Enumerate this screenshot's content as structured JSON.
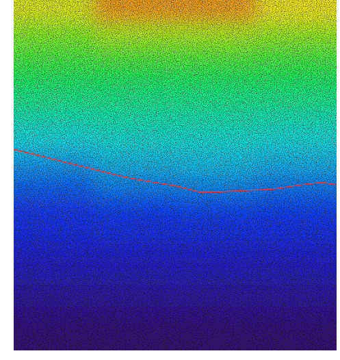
{
  "chart_data": {
    "type": "heatmap",
    "xlim": [
      0,
      1
    ],
    "ylim": [
      0,
      1
    ],
    "zlim": [
      0,
      1
    ],
    "tick_labels": false,
    "cells": [
      [
        0.9,
        0.97,
        0.97,
        0.92
      ],
      [
        0.82,
        0.86,
        0.86,
        0.84
      ],
      [
        0.77,
        0.78,
        0.78,
        0.77
      ],
      [
        0.72,
        0.72,
        0.72,
        0.72
      ],
      [
        0.67,
        0.67,
        0.67,
        0.67
      ],
      [
        0.61,
        0.62,
        0.62,
        0.61
      ],
      [
        0.55,
        0.57,
        0.57,
        0.56
      ],
      [
        0.47,
        0.51,
        0.52,
        0.5
      ],
      [
        0.4,
        0.44,
        0.45,
        0.43
      ],
      [
        0.34,
        0.36,
        0.37,
        0.36
      ],
      [
        0.29,
        0.3,
        0.3,
        0.3
      ],
      [
        0.24,
        0.24,
        0.24,
        0.24
      ],
      [
        0.19,
        0.19,
        0.19,
        0.19
      ],
      [
        0.14,
        0.14,
        0.14,
        0.14
      ],
      [
        0.09,
        0.09,
        0.09,
        0.09
      ],
      [
        0.04,
        0.04,
        0.04,
        0.04
      ]
    ],
    "series": [
      {
        "type": "line",
        "color": "#e8363c",
        "x": [
          0,
          0.085,
          0.169,
          0.254,
          0.339,
          0.424,
          0.508,
          0.572,
          0.636,
          0.72,
          0.805,
          0.89,
          0.953,
          1
        ],
        "values": [
          0.574,
          0.555,
          0.535,
          0.516,
          0.496,
          0.482,
          0.469,
          0.453,
          0.453,
          0.457,
          0.461,
          0.473,
          0.48,
          0.473
        ]
      }
    ]
  }
}
